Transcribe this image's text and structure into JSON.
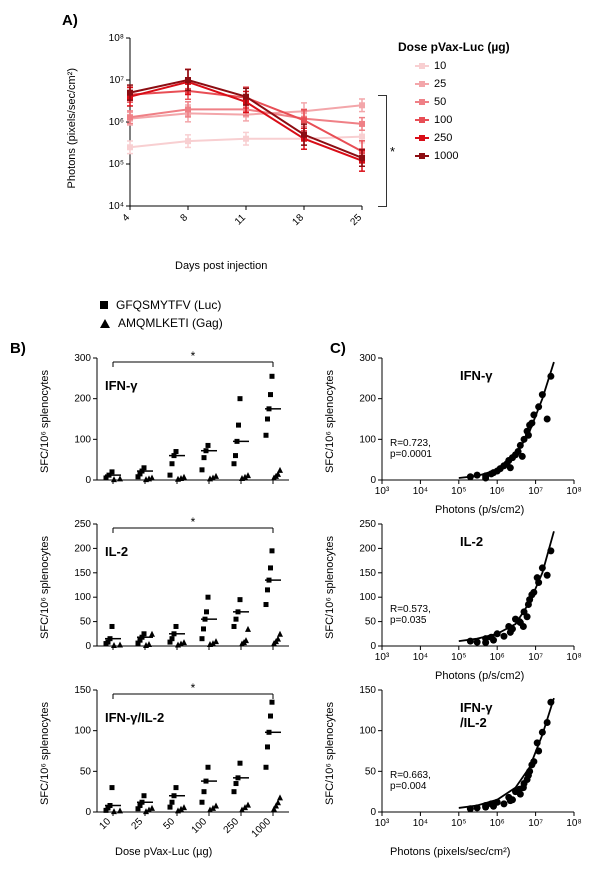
{
  "panels": {
    "A": "A)",
    "B": "B)",
    "C": "C)"
  },
  "panelA": {
    "type": "line",
    "xlabel": "Days post injection",
    "ylabel": "Photons (pixels/sec/cm²)",
    "xcats": [
      "4",
      "8",
      "11",
      "18",
      "25"
    ],
    "yscale": "log",
    "ylim": [
      10000,
      100000000
    ],
    "yticks": [
      "10⁴",
      "10⁵",
      "10⁶",
      "10⁷",
      "10⁸"
    ],
    "legend_title": "Dose pVax-Luc (µg)",
    "sig_mark": "*",
    "series": [
      {
        "label": "10",
        "color": "#f8cfd1",
        "vals": [
          250000.0,
          350000.0,
          400000.0,
          400000.0,
          450000.0
        ],
        "err": [
          0.15,
          0.15,
          0.15,
          0.15,
          0.15
        ]
      },
      {
        "label": "25",
        "color": "#f3a6aa",
        "vals": [
          1200000.0,
          1600000.0,
          1500000.0,
          1800000.0,
          2500000.0
        ],
        "err": [
          0.15,
          0.2,
          0.15,
          0.2,
          0.15
        ]
      },
      {
        "label": "50",
        "color": "#ef8086",
        "vals": [
          1300000.0,
          2000000.0,
          2000000.0,
          1200000.0,
          900000.0
        ],
        "err": [
          0.15,
          0.18,
          0.15,
          0.18,
          0.15
        ]
      },
      {
        "label": "100",
        "color": "#e84e55",
        "vals": [
          4500000.0,
          5500000.0,
          3800000.0,
          1100000.0,
          200000.0
        ],
        "err": [
          0.18,
          0.2,
          0.25,
          0.25,
          0.25
        ]
      },
      {
        "label": "250",
        "color": "#d90d17",
        "vals": [
          4000000.0,
          9000000.0,
          3000000.0,
          400000.0,
          120000.0
        ],
        "err": [
          0.22,
          0.3,
          0.25,
          0.25,
          0.25
        ]
      },
      {
        "label": "1000",
        "color": "#8c0d12",
        "vals": [
          5000000.0,
          10000000.0,
          4000000.0,
          500000.0,
          140000.0
        ],
        "err": [
          0.18,
          0.25,
          0.2,
          0.25,
          0.2
        ]
      }
    ]
  },
  "shapeLegend": {
    "square": "GFQSMYTFV (Luc)",
    "triangle": "AMQMLKETI (Gag)"
  },
  "panelB": {
    "type": "scatter-dose",
    "xlabel": "Dose pVax-Luc (µg)",
    "xcats": [
      "10",
      "25",
      "50",
      "100",
      "250",
      "1000"
    ],
    "ylabel": "SFC/10⁶ splenocytes",
    "sig_mark": "*",
    "plots": [
      {
        "title": "IFN-γ",
        "ylim": [
          0,
          300
        ],
        "ytick_step": 100,
        "series": [
          {
            "shape": "sq",
            "vals": {
              "10": [
                5,
                12,
                20
              ],
              "25": [
                8,
                15,
                22,
                30
              ],
              "50": [
                12,
                40,
                60,
                70
              ],
              "100": [
                25,
                55,
                72,
                85
              ],
              "250": [
                40,
                60,
                95,
                135,
                200
              ],
              "1000": [
                110,
                150,
                175,
                210,
                255
              ]
            }
          },
          {
            "shape": "tri",
            "vals": {
              "10": [
                2,
                4
              ],
              "25": [
                2,
                4,
                6
              ],
              "50": [
                3,
                5,
                8
              ],
              "100": [
                4,
                6,
                10
              ],
              "250": [
                5,
                8,
                12
              ],
              "1000": [
                6,
                10,
                15,
                25
              ]
            }
          }
        ]
      },
      {
        "title": "IL-2",
        "ylim": [
          0,
          250
        ],
        "ytick_step": 50,
        "series": [
          {
            "shape": "sq",
            "vals": {
              "10": [
                5,
                8,
                15,
                40
              ],
              "25": [
                6,
                12,
                18,
                25
              ],
              "50": [
                8,
                15,
                25,
                40
              ],
              "100": [
                15,
                35,
                55,
                70,
                100
              ],
              "250": [
                40,
                55,
                70,
                95
              ],
              "1000": [
                85,
                115,
                135,
                160,
                195
              ]
            }
          },
          {
            "shape": "tri",
            "vals": {
              "10": [
                2,
                3
              ],
              "25": [
                2,
                4,
                25
              ],
              "50": [
                3,
                5,
                8
              ],
              "100": [
                4,
                6,
                10
              ],
              "250": [
                5,
                8,
                12,
                35
              ],
              "1000": [
                6,
                10,
                15,
                25
              ]
            }
          }
        ]
      },
      {
        "title": "IFN-γ/IL-2",
        "ylim": [
          0,
          150
        ],
        "ytick_step": 50,
        "series": [
          {
            "shape": "sq",
            "vals": {
              "10": [
                2,
                5,
                8,
                30
              ],
              "25": [
                4,
                8,
                12,
                20
              ],
              "50": [
                6,
                12,
                20,
                30
              ],
              "100": [
                12,
                25,
                38,
                55
              ],
              "250": [
                25,
                35,
                42,
                60
              ],
              "1000": [
                55,
                80,
                98,
                118,
                135
              ]
            }
          },
          {
            "shape": "tri",
            "vals": {
              "10": [
                1,
                2
              ],
              "25": [
                1,
                3,
                5
              ],
              "50": [
                2,
                4,
                6
              ],
              "100": [
                3,
                5,
                8
              ],
              "250": [
                3,
                6,
                9
              ],
              "1000": [
                4,
                8,
                12,
                18
              ]
            }
          }
        ]
      }
    ]
  },
  "panelC": {
    "type": "scatter-corr",
    "xlabel": "Photons (pixels/sec/cm²)",
    "xlabel_short": "Photons (p/s/cm2)",
    "ylabel": "SFC/10⁶ splenocytes",
    "xscale": "log",
    "xlim": [
      1000,
      100000000
    ],
    "xticks": [
      "10³",
      "10⁴",
      "10⁵",
      "10⁶",
      "10⁷",
      "10⁸"
    ],
    "plots": [
      {
        "title": "IFN-γ",
        "ylim": [
          0,
          300
        ],
        "ytick_step": 100,
        "stats": "R=0.723,\np=0.0001",
        "pts": [
          [
            200000.0,
            8
          ],
          [
            300000.0,
            12
          ],
          [
            500000.0,
            10
          ],
          [
            800000.0,
            18
          ],
          [
            1000000.0,
            22
          ],
          [
            1200000.0,
            28
          ],
          [
            1500000.0,
            35
          ],
          [
            1800000.0,
            40
          ],
          [
            2000000.0,
            48
          ],
          [
            2500000.0,
            55
          ],
          [
            3000000.0,
            62
          ],
          [
            3500000.0,
            70
          ],
          [
            4000000.0,
            85
          ],
          [
            5000000.0,
            100
          ],
          [
            6000000.0,
            120
          ],
          [
            7000000.0,
            135
          ],
          [
            8000000.0,
            140
          ],
          [
            9000000.0,
            160
          ],
          [
            12000000.0,
            180
          ],
          [
            15000000.0,
            210
          ],
          [
            20000000.0,
            150
          ],
          [
            25000000.0,
            255
          ],
          [
            500000.0,
            5
          ],
          [
            700000.0,
            15
          ],
          [
            2200000.0,
            30
          ],
          [
            4500000.0,
            58
          ],
          [
            6500000.0,
            110
          ]
        ],
        "curve": [
          [
            100000.0,
            5
          ],
          [
            300000.0,
            10
          ],
          [
            1000000.0,
            25
          ],
          [
            3000000.0,
            60
          ],
          [
            7000000.0,
            120
          ],
          [
            15000000.0,
            200
          ],
          [
            30000000.0,
            290
          ]
        ]
      },
      {
        "title": "IL-2",
        "ylim": [
          0,
          250
        ],
        "ytick_step": 50,
        "stats": "R=0.573,\np=0.035",
        "pts": [
          [
            200000.0,
            10
          ],
          [
            300000.0,
            8
          ],
          [
            500000.0,
            15
          ],
          [
            800000.0,
            12
          ],
          [
            1000000.0,
            25
          ],
          [
            1500000.0,
            20
          ],
          [
            2000000.0,
            40
          ],
          [
            2500000.0,
            35
          ],
          [
            3000000.0,
            55
          ],
          [
            4000000.0,
            48
          ],
          [
            5000000.0,
            70
          ],
          [
            6000000.0,
            60
          ],
          [
            7000000.0,
            95
          ],
          [
            8000000.0,
            105
          ],
          [
            9000000.0,
            110
          ],
          [
            12000000.0,
            130
          ],
          [
            15000000.0,
            160
          ],
          [
            20000000.0,
            145
          ],
          [
            25000000.0,
            195
          ],
          [
            500000.0,
            7
          ],
          [
            700000.0,
            18
          ],
          [
            2200000.0,
            28
          ],
          [
            3800000.0,
            50
          ],
          [
            6500000.0,
            85
          ],
          [
            4800000.0,
            40
          ],
          [
            11000000.0,
            140
          ]
        ],
        "curve": [
          [
            100000.0,
            10
          ],
          [
            300000.0,
            15
          ],
          [
            1000000.0,
            25
          ],
          [
            3000000.0,
            45
          ],
          [
            7000000.0,
            90
          ],
          [
            15000000.0,
            150
          ],
          [
            30000000.0,
            235
          ]
        ]
      },
      {
        "title": "IFN-γ\n/IL-2",
        "ylim": [
          0,
          150
        ],
        "ytick_step": 50,
        "stats": "R=0.663,\np=0.004",
        "pts": [
          [
            200000.0,
            4
          ],
          [
            300000.0,
            5
          ],
          [
            500000.0,
            8
          ],
          [
            800000.0,
            7
          ],
          [
            1000000.0,
            12
          ],
          [
            1500000.0,
            10
          ],
          [
            2000000.0,
            18
          ],
          [
            2500000.0,
            15
          ],
          [
            3000000.0,
            25
          ],
          [
            4000000.0,
            22
          ],
          [
            5000000.0,
            35
          ],
          [
            6000000.0,
            40
          ],
          [
            7000000.0,
            50
          ],
          [
            8000000.0,
            58
          ],
          [
            9000000.0,
            62
          ],
          [
            12000000.0,
            75
          ],
          [
            15000000.0,
            98
          ],
          [
            20000000.0,
            110
          ],
          [
            25000000.0,
            135
          ],
          [
            500000.0,
            6
          ],
          [
            700000.0,
            10
          ],
          [
            2200000.0,
            14
          ],
          [
            3800000.0,
            28
          ],
          [
            6500000.0,
            45
          ],
          [
            4800000.0,
            30
          ],
          [
            11000000.0,
            85
          ]
        ],
        "curve": [
          [
            100000.0,
            5
          ],
          [
            300000.0,
            8
          ],
          [
            1000000.0,
            15
          ],
          [
            3000000.0,
            30
          ],
          [
            7000000.0,
            55
          ],
          [
            15000000.0,
            95
          ],
          [
            30000000.0,
            140
          ]
        ]
      }
    ]
  },
  "colors": {
    "marker": "#000000",
    "axis": "#000000",
    "background": "#ffffff",
    "bracket": "#333333"
  }
}
